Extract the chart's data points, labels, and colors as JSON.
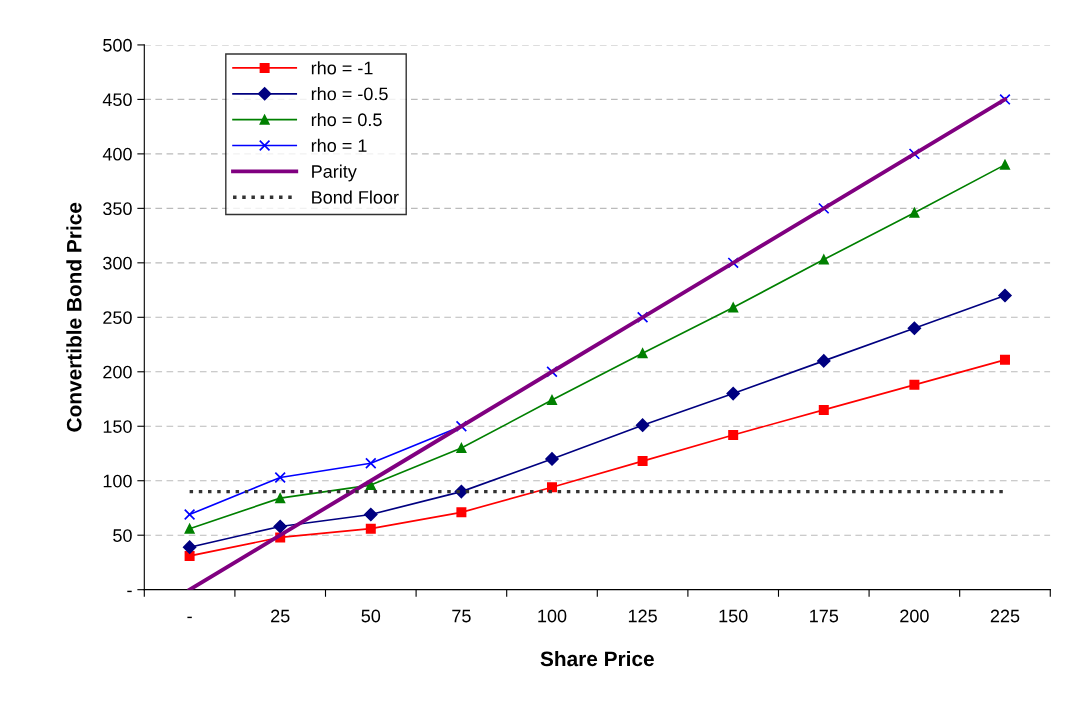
{
  "chart_data": {
    "type": "line",
    "xlabel": "Share Price",
    "ylabel": "Convertible Bond Price",
    "categories": [
      "-",
      "25",
      "50",
      "75",
      "100",
      "125",
      "150",
      "175",
      "200",
      "225"
    ],
    "series": [
      {
        "name": "rho = -1",
        "color": "#ff0000",
        "marker": "square",
        "values": [
          31,
          48,
          56,
          71,
          94,
          118,
          142,
          165,
          188,
          211
        ]
      },
      {
        "name": "rho = -0.5",
        "color": "#000080",
        "marker": "diamond",
        "values": [
          39,
          58,
          69,
          90,
          120,
          151,
          180,
          210,
          240,
          270
        ]
      },
      {
        "name": "rho = 0.5",
        "color": "#008000",
        "marker": "triangle",
        "values": [
          56,
          84,
          96,
          130,
          174,
          217,
          259,
          303,
          346,
          390
        ]
      },
      {
        "name": "rho = 1",
        "color": "#0000ff",
        "marker": "cross",
        "values": [
          69,
          103,
          116,
          150,
          200,
          250,
          300,
          350,
          400,
          450
        ]
      },
      {
        "name": "Parity",
        "color": "#800080",
        "marker": "none",
        "values": [
          0,
          50,
          100,
          150,
          200,
          250,
          300,
          350,
          400,
          450
        ]
      },
      {
        "name": "Bond Floor",
        "color": "#333333",
        "marker": "none",
        "line_style": "dotted",
        "values": [
          90,
          90,
          90,
          90,
          90,
          90,
          90,
          90,
          90,
          90
        ]
      }
    ],
    "ylim": [
      0,
      500
    ],
    "yticks": [
      {
        "value": 0,
        "label": "-"
      },
      50,
      100,
      150,
      200,
      250,
      300,
      350,
      400,
      450,
      500
    ],
    "grid": "y",
    "legend": "top left"
  }
}
